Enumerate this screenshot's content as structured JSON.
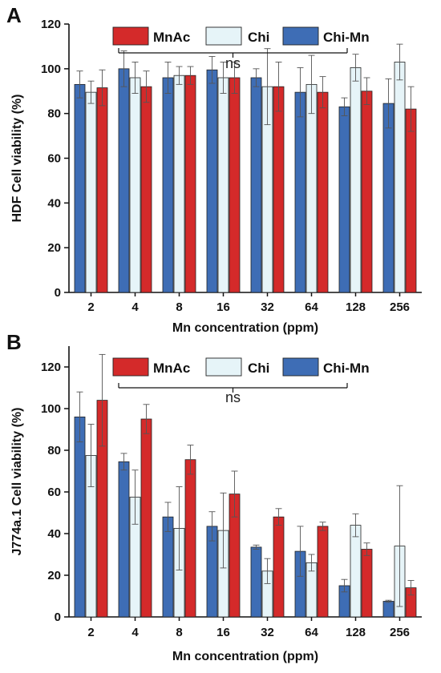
{
  "series_colors": {
    "MnAc": "#d42a2a",
    "Chi": "#e6f4f8",
    "Chi-Mn": "#3e6db5"
  },
  "chart_data": [
    {
      "panel": "A",
      "type": "bar",
      "categories": [
        "2",
        "4",
        "8",
        "16",
        "32",
        "64",
        "128",
        "256"
      ],
      "xlabel": "Mn concentration (ppm)",
      "ylabel": "HDF Cell viability (%)",
      "ylim": [
        0,
        120
      ],
      "yticks": [
        "0",
        "20",
        "40",
        "60",
        "80",
        "100",
        "120"
      ],
      "legend": {
        "placement": "top-center",
        "entries": [
          "MnAc",
          "Chi",
          "Chi-Mn"
        ]
      },
      "annotation": "ns",
      "series": [
        {
          "name": "Chi-Mn",
          "values": [
            93,
            100,
            96,
            99.5,
            96,
            89.5,
            83,
            84.5
          ],
          "errors": [
            6,
            8,
            7,
            6,
            4,
            11,
            4,
            11
          ]
        },
        {
          "name": "Chi",
          "values": [
            89.5,
            96,
            97,
            96,
            92,
            93,
            100.5,
            103
          ],
          "errors": [
            5,
            7,
            4,
            7,
            17,
            13,
            6,
            8
          ]
        },
        {
          "name": "MnAc",
          "values": [
            91.5,
            92,
            97,
            96,
            92,
            89.5,
            90,
            82
          ],
          "errors": [
            8,
            7,
            4,
            7,
            11,
            7,
            6,
            10
          ]
        }
      ]
    },
    {
      "panel": "B",
      "type": "bar",
      "categories": [
        "2",
        "4",
        "8",
        "16",
        "32",
        "64",
        "128",
        "256"
      ],
      "xlabel": "Mn concentration (ppm)",
      "ylabel": "J774a.1 Cell viability (%)",
      "ylim": [
        0,
        130
      ],
      "yticks": [
        "0",
        "20",
        "40",
        "60",
        "80",
        "100",
        "120"
      ],
      "legend": {
        "placement": "top-center",
        "entries": [
          "MnAc",
          "Chi",
          "Chi-Mn"
        ]
      },
      "annotation": "ns",
      "series": [
        {
          "name": "Chi-Mn",
          "values": [
            96,
            74.5,
            48,
            43.5,
            33.5,
            31.5,
            15,
            7.5
          ],
          "errors": [
            12,
            4,
            7,
            7,
            1,
            12,
            3,
            0.5
          ]
        },
        {
          "name": "Chi",
          "values": [
            77.5,
            57.5,
            42.5,
            41.5,
            22,
            26,
            44,
            34
          ],
          "errors": [
            15,
            13,
            20,
            18,
            6,
            4,
            5.5,
            29
          ]
        },
        {
          "name": "MnAc",
          "values": [
            104,
            95,
            75.5,
            59,
            48,
            43.5,
            32.5,
            14
          ],
          "errors": [
            22,
            7,
            7,
            11,
            4,
            2,
            3,
            3.5
          ]
        }
      ]
    }
  ]
}
